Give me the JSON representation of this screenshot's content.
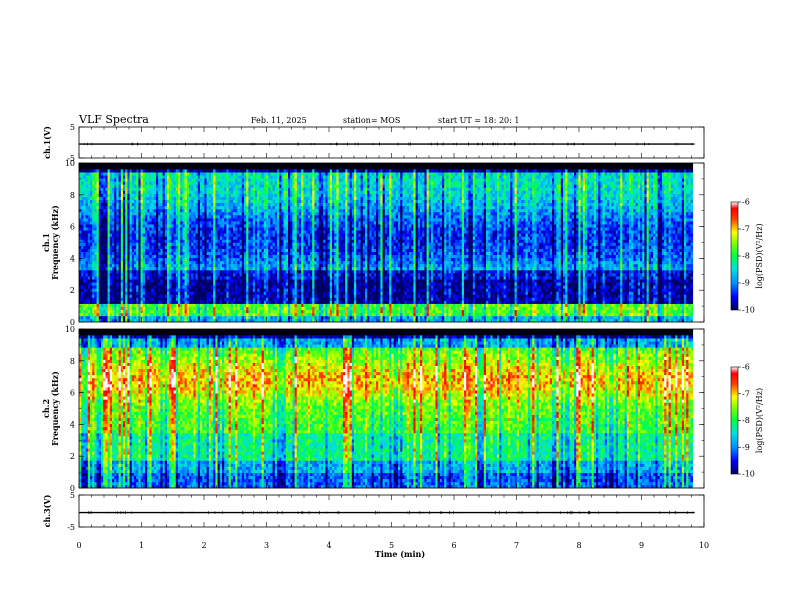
{
  "header": {
    "title": "VLF Spectra",
    "date": "Feb. 11, 2025",
    "station": "station= MOS",
    "start": "start  UT =   18: 20: 1"
  },
  "chart_data": [
    {
      "type": "line",
      "name": "ch1-waveform",
      "ylabel": "ch.1(V)",
      "ylim": [
        -5,
        5
      ],
      "yticks": [
        "5",
        "-5"
      ],
      "xlim": [
        0,
        10
      ],
      "level": -0.5
    },
    {
      "type": "heatmap",
      "name": "ch1-spectrogram",
      "ylabel_top": "ch.1",
      "ylabel": "Frequency (kHz)",
      "ylim": [
        0,
        10
      ],
      "yticks": [
        "0",
        "2",
        "4",
        "6",
        "8",
        "10"
      ],
      "xlim": [
        0,
        9.85
      ],
      "colorbar": {
        "label": "log(PSD)(V²/Hz)",
        "range": [
          -10,
          -6
        ],
        "ticks": [
          "-6",
          "-7",
          "-8",
          "-9",
          "-10"
        ]
      }
    },
    {
      "type": "heatmap",
      "name": "ch2-spectrogram",
      "ylabel_top": "ch.2",
      "ylabel": "Frequency (kHz)",
      "ylim": [
        0,
        10
      ],
      "yticks": [
        "0",
        "2",
        "4",
        "6",
        "8",
        "10"
      ],
      "xlim": [
        0,
        9.85
      ],
      "colorbar": {
        "label": "log(PSD)(V²/Hz)",
        "range": [
          -10,
          -6
        ],
        "ticks": [
          "-6",
          "-7",
          "-8",
          "-9",
          "-10"
        ]
      }
    },
    {
      "type": "line",
      "name": "ch3-waveform",
      "ylabel": "ch.3(V)",
      "ylim": [
        -5,
        5
      ],
      "yticks": [
        "5",
        "-5"
      ],
      "xlim": [
        0,
        10
      ],
      "level": -0.5
    }
  ],
  "xaxis": {
    "label": "Time (min)",
    "ticks": [
      "0",
      "1",
      "2",
      "3",
      "4",
      "5",
      "6",
      "7",
      "8",
      "9",
      "10"
    ]
  }
}
